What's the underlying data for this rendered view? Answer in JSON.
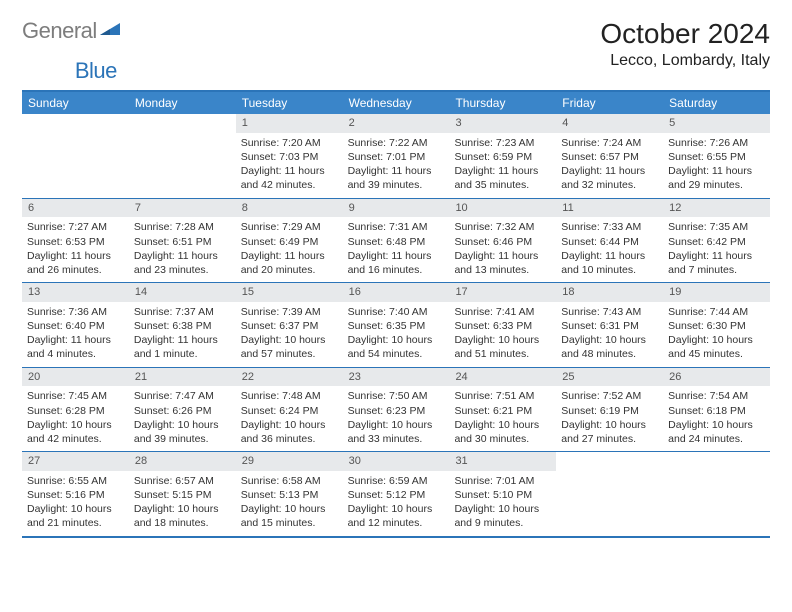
{
  "logo": {
    "gray": "General",
    "blue": "Blue"
  },
  "title": "October 2024",
  "location": "Lecco, Lombardy, Italy",
  "colors": {
    "header_bar": "#3a85c9",
    "rule": "#2b74b8",
    "daynum_bg": "#e7e9eb",
    "logo_gray": "#7d7d7d",
    "logo_blue": "#2b74b8"
  },
  "day_headers": [
    "Sunday",
    "Monday",
    "Tuesday",
    "Wednesday",
    "Thursday",
    "Friday",
    "Saturday"
  ],
  "weeks": [
    [
      {
        "n": "",
        "sunrise": "",
        "sunset": "",
        "daylight": ""
      },
      {
        "n": "",
        "sunrise": "",
        "sunset": "",
        "daylight": ""
      },
      {
        "n": "1",
        "sunrise": "Sunrise: 7:20 AM",
        "sunset": "Sunset: 7:03 PM",
        "daylight": "Daylight: 11 hours and 42 minutes."
      },
      {
        "n": "2",
        "sunrise": "Sunrise: 7:22 AM",
        "sunset": "Sunset: 7:01 PM",
        "daylight": "Daylight: 11 hours and 39 minutes."
      },
      {
        "n": "3",
        "sunrise": "Sunrise: 7:23 AM",
        "sunset": "Sunset: 6:59 PM",
        "daylight": "Daylight: 11 hours and 35 minutes."
      },
      {
        "n": "4",
        "sunrise": "Sunrise: 7:24 AM",
        "sunset": "Sunset: 6:57 PM",
        "daylight": "Daylight: 11 hours and 32 minutes."
      },
      {
        "n": "5",
        "sunrise": "Sunrise: 7:26 AM",
        "sunset": "Sunset: 6:55 PM",
        "daylight": "Daylight: 11 hours and 29 minutes."
      }
    ],
    [
      {
        "n": "6",
        "sunrise": "Sunrise: 7:27 AM",
        "sunset": "Sunset: 6:53 PM",
        "daylight": "Daylight: 11 hours and 26 minutes."
      },
      {
        "n": "7",
        "sunrise": "Sunrise: 7:28 AM",
        "sunset": "Sunset: 6:51 PM",
        "daylight": "Daylight: 11 hours and 23 minutes."
      },
      {
        "n": "8",
        "sunrise": "Sunrise: 7:29 AM",
        "sunset": "Sunset: 6:49 PM",
        "daylight": "Daylight: 11 hours and 20 minutes."
      },
      {
        "n": "9",
        "sunrise": "Sunrise: 7:31 AM",
        "sunset": "Sunset: 6:48 PM",
        "daylight": "Daylight: 11 hours and 16 minutes."
      },
      {
        "n": "10",
        "sunrise": "Sunrise: 7:32 AM",
        "sunset": "Sunset: 6:46 PM",
        "daylight": "Daylight: 11 hours and 13 minutes."
      },
      {
        "n": "11",
        "sunrise": "Sunrise: 7:33 AM",
        "sunset": "Sunset: 6:44 PM",
        "daylight": "Daylight: 11 hours and 10 minutes."
      },
      {
        "n": "12",
        "sunrise": "Sunrise: 7:35 AM",
        "sunset": "Sunset: 6:42 PM",
        "daylight": "Daylight: 11 hours and 7 minutes."
      }
    ],
    [
      {
        "n": "13",
        "sunrise": "Sunrise: 7:36 AM",
        "sunset": "Sunset: 6:40 PM",
        "daylight": "Daylight: 11 hours and 4 minutes."
      },
      {
        "n": "14",
        "sunrise": "Sunrise: 7:37 AM",
        "sunset": "Sunset: 6:38 PM",
        "daylight": "Daylight: 11 hours and 1 minute."
      },
      {
        "n": "15",
        "sunrise": "Sunrise: 7:39 AM",
        "sunset": "Sunset: 6:37 PM",
        "daylight": "Daylight: 10 hours and 57 minutes."
      },
      {
        "n": "16",
        "sunrise": "Sunrise: 7:40 AM",
        "sunset": "Sunset: 6:35 PM",
        "daylight": "Daylight: 10 hours and 54 minutes."
      },
      {
        "n": "17",
        "sunrise": "Sunrise: 7:41 AM",
        "sunset": "Sunset: 6:33 PM",
        "daylight": "Daylight: 10 hours and 51 minutes."
      },
      {
        "n": "18",
        "sunrise": "Sunrise: 7:43 AM",
        "sunset": "Sunset: 6:31 PM",
        "daylight": "Daylight: 10 hours and 48 minutes."
      },
      {
        "n": "19",
        "sunrise": "Sunrise: 7:44 AM",
        "sunset": "Sunset: 6:30 PM",
        "daylight": "Daylight: 10 hours and 45 minutes."
      }
    ],
    [
      {
        "n": "20",
        "sunrise": "Sunrise: 7:45 AM",
        "sunset": "Sunset: 6:28 PM",
        "daylight": "Daylight: 10 hours and 42 minutes."
      },
      {
        "n": "21",
        "sunrise": "Sunrise: 7:47 AM",
        "sunset": "Sunset: 6:26 PM",
        "daylight": "Daylight: 10 hours and 39 minutes."
      },
      {
        "n": "22",
        "sunrise": "Sunrise: 7:48 AM",
        "sunset": "Sunset: 6:24 PM",
        "daylight": "Daylight: 10 hours and 36 minutes."
      },
      {
        "n": "23",
        "sunrise": "Sunrise: 7:50 AM",
        "sunset": "Sunset: 6:23 PM",
        "daylight": "Daylight: 10 hours and 33 minutes."
      },
      {
        "n": "24",
        "sunrise": "Sunrise: 7:51 AM",
        "sunset": "Sunset: 6:21 PM",
        "daylight": "Daylight: 10 hours and 30 minutes."
      },
      {
        "n": "25",
        "sunrise": "Sunrise: 7:52 AM",
        "sunset": "Sunset: 6:19 PM",
        "daylight": "Daylight: 10 hours and 27 minutes."
      },
      {
        "n": "26",
        "sunrise": "Sunrise: 7:54 AM",
        "sunset": "Sunset: 6:18 PM",
        "daylight": "Daylight: 10 hours and 24 minutes."
      }
    ],
    [
      {
        "n": "27",
        "sunrise": "Sunrise: 6:55 AM",
        "sunset": "Sunset: 5:16 PM",
        "daylight": "Daylight: 10 hours and 21 minutes."
      },
      {
        "n": "28",
        "sunrise": "Sunrise: 6:57 AM",
        "sunset": "Sunset: 5:15 PM",
        "daylight": "Daylight: 10 hours and 18 minutes."
      },
      {
        "n": "29",
        "sunrise": "Sunrise: 6:58 AM",
        "sunset": "Sunset: 5:13 PM",
        "daylight": "Daylight: 10 hours and 15 minutes."
      },
      {
        "n": "30",
        "sunrise": "Sunrise: 6:59 AM",
        "sunset": "Sunset: 5:12 PM",
        "daylight": "Daylight: 10 hours and 12 minutes."
      },
      {
        "n": "31",
        "sunrise": "Sunrise: 7:01 AM",
        "sunset": "Sunset: 5:10 PM",
        "daylight": "Daylight: 10 hours and 9 minutes."
      },
      {
        "n": "",
        "sunrise": "",
        "sunset": "",
        "daylight": ""
      },
      {
        "n": "",
        "sunrise": "",
        "sunset": "",
        "daylight": ""
      }
    ]
  ]
}
